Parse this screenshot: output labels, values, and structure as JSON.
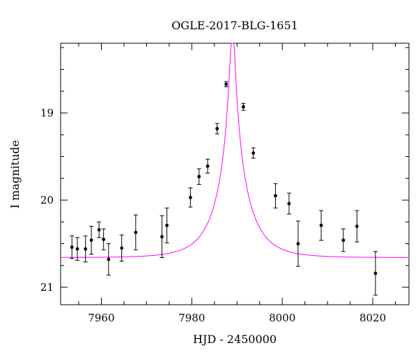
{
  "chart_data": {
    "type": "scatter",
    "title": "OGLE-2017-BLG-1651",
    "xlabel": "HJD - 2450000",
    "ylabel": "I magnitude",
    "xlim": [
      7951,
      8028
    ],
    "ylim": [
      21.2,
      18.2
    ],
    "y_inverted": true,
    "x_ticks_major": [
      7960,
      7980,
      8000,
      8020
    ],
    "y_ticks_major": [
      19,
      20,
      21
    ],
    "x_minor_step": 5,
    "y_minor_step": 0.25,
    "point_color": "#000000",
    "model_color": "#ff00ff",
    "series": [
      {
        "kind": "points",
        "x": [
          7953.5,
          7954.7,
          7956.5,
          7957.8,
          7959.5,
          7960.5,
          7961.6,
          7964.5,
          7967.6,
          7973.4,
          7974.5,
          7979.7,
          7981.6,
          7983.5,
          7985.6,
          7987.6,
          7991.4,
          7993.6,
          7998.5,
          8001.5,
          8003.5,
          8008.6,
          8013.5,
          8016.5,
          8020.6
        ],
        "y": [
          20.54,
          20.56,
          20.56,
          20.46,
          20.34,
          20.45,
          20.68,
          20.55,
          20.37,
          20.42,
          20.29,
          19.97,
          19.73,
          19.61,
          19.18,
          18.67,
          18.93,
          19.46,
          19.95,
          20.04,
          20.5,
          20.29,
          20.46,
          20.3,
          20.84
        ],
        "yerr": [
          0.13,
          0.13,
          0.15,
          0.16,
          0.09,
          0.12,
          0.18,
          0.15,
          0.2,
          0.24,
          0.2,
          0.11,
          0.09,
          0.08,
          0.06,
          0.03,
          0.04,
          0.06,
          0.14,
          0.12,
          0.26,
          0.17,
          0.13,
          0.18,
          0.25
        ]
      },
      {
        "kind": "model",
        "t0": 7989.0,
        "u0": 0.075,
        "tE": 6.8,
        "baseline_mag": 20.66,
        "blend_fraction": 0.85
      }
    ]
  }
}
